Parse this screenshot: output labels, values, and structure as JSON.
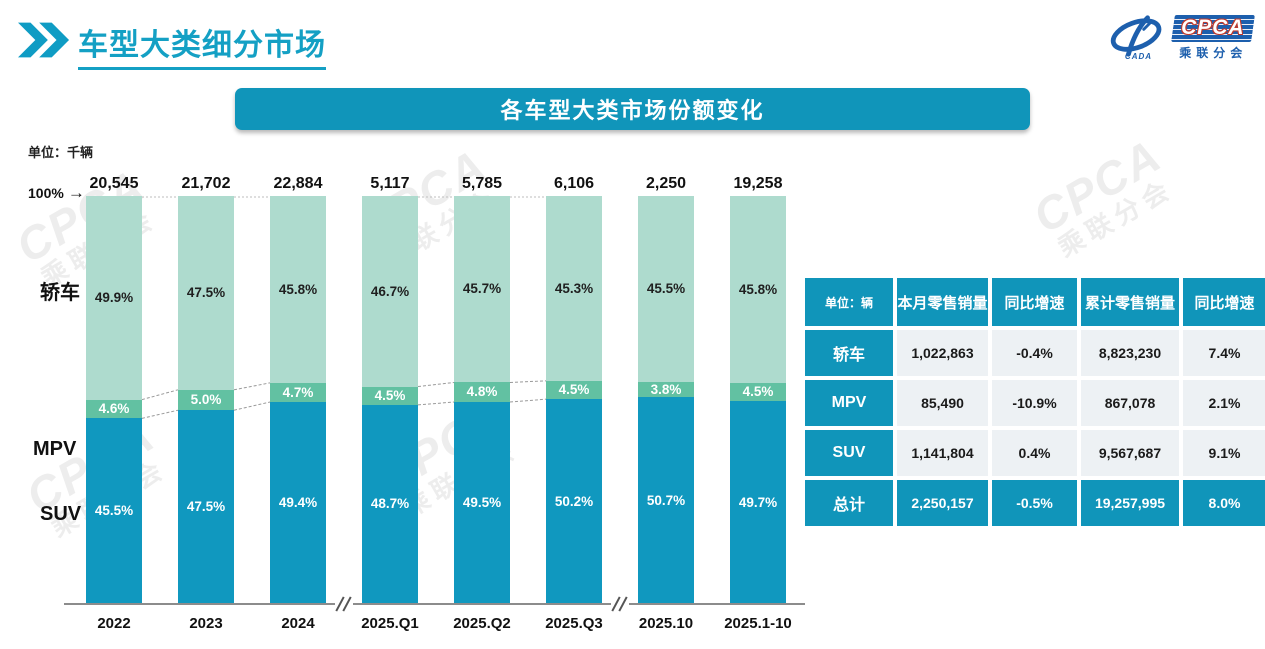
{
  "page": {
    "title": "车型大类细分市场",
    "banner_title": "各车型大类市场份额变化",
    "chart_unit_label": "单位：千辆",
    "hundred_pct_label": "100%",
    "arrow_glyph": "→"
  },
  "logo": {
    "cpca_text": "CPCA",
    "cpca_cn": "乘联分会",
    "cada_text": "CADA"
  },
  "watermark": {
    "text": "CPCA",
    "subtext": "乘联分会"
  },
  "colors": {
    "teal": "#1095ba",
    "suv": "#1098bf",
    "mpv": "#62c1a2",
    "sedan": "#aedbce"
  },
  "chart_data": {
    "type": "bar",
    "stacked": true,
    "percent_stack": true,
    "unit": "千辆",
    "title": "各车型大类市场份额变化",
    "categories": [
      "2022",
      "2023",
      "2024",
      "2025.Q1",
      "2025.Q2",
      "2025.Q3",
      "2025.10",
      "2025.1-10"
    ],
    "totals": [
      "20,545",
      "21,702",
      "22,884",
      "5,117",
      "5,785",
      "6,106",
      "2,250",
      "19,258"
    ],
    "series": [
      {
        "name": "轿车",
        "values": [
          49.9,
          47.5,
          45.8,
          46.7,
          45.7,
          45.3,
          45.5,
          45.8
        ],
        "color_key": "sedan",
        "label_color": "#1f1f1f"
      },
      {
        "name": "MPV",
        "values": [
          4.6,
          5.0,
          4.7,
          4.5,
          4.8,
          4.5,
          3.8,
          4.5
        ],
        "color_key": "mpv",
        "label_color": "#ffffff"
      },
      {
        "name": "SUV",
        "values": [
          45.5,
          47.5,
          49.4,
          48.7,
          49.5,
          50.2,
          50.7,
          49.7
        ],
        "color_key": "suv",
        "label_color": "#ffffff"
      }
    ],
    "connector_pairs": [
      [
        0,
        1
      ],
      [
        1,
        2
      ],
      [
        3,
        4
      ],
      [
        4,
        5
      ]
    ],
    "axis_breaks_after": [
      2,
      5
    ],
    "ylim": [
      0,
      100
    ],
    "grid": false,
    "legend_position": "left-axis"
  },
  "table": {
    "unit_header": "单位：辆",
    "columns": [
      "本月零售销量",
      "同比增速",
      "累计零售销量",
      "同比增速"
    ],
    "rows": [
      {
        "label": "轿车",
        "cells": [
          "1,022,863",
          "-0.4%",
          "8,823,230",
          "7.4%"
        ],
        "total": false
      },
      {
        "label": "MPV",
        "cells": [
          "85,490",
          "-10.9%",
          "867,078",
          "2.1%"
        ],
        "total": false
      },
      {
        "label": "SUV",
        "cells": [
          "1,141,804",
          "0.4%",
          "9,567,687",
          "9.1%"
        ],
        "total": false
      },
      {
        "label": "总计",
        "cells": [
          "2,250,157",
          "-0.5%",
          "19,257,995",
          "8.0%"
        ],
        "total": true
      }
    ]
  }
}
